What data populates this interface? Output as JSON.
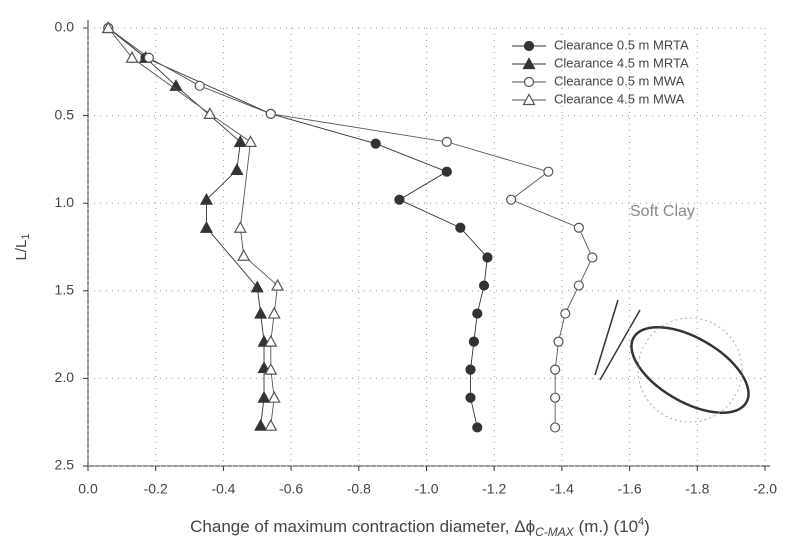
{
  "chart_data": {
    "type": "line",
    "x_label": "Change of maximum contraction diameter, Δϕ",
    "x_label_sub": "C-MAX",
    "x_label_mid": " (m.) (10",
    "x_label_sup": "4",
    "x_label_end": ")",
    "y_label": "L/L",
    "y_label_sub": "1",
    "annotation": "Soft Clay",
    "xlim": [
      0,
      -2.0
    ],
    "xticks": [
      {
        "value": 0,
        "label": "0.0"
      },
      -0.2,
      -0.4,
      -0.6,
      -0.8,
      {
        "value": -1.0,
        "label": "-1.0"
      },
      -1.2,
      -1.4,
      -1.6,
      -1.8,
      {
        "value": -2.0,
        "label": "-2.0"
      }
    ],
    "ylim": [
      0,
      2.5
    ],
    "y_inverted": true,
    "yticks": [
      {
        "value": 0,
        "label": "0.0"
      },
      0.5,
      {
        "value": 1.0,
        "label": "1.0"
      },
      1.5,
      {
        "value": 2.0,
        "label": "2.0"
      },
      2.5
    ],
    "grid": true,
    "legend": "upper right",
    "series": [
      {
        "name": "Clearance 0.5 m  MRTA",
        "color": "#333333",
        "marker": "circle-filled",
        "x": [
          -0.06,
          -0.17,
          -0.54,
          -0.85,
          -1.06,
          -0.92,
          -1.1,
          -1.18,
          -1.17,
          -1.15,
          -1.14,
          -1.13,
          -1.13,
          -1.15
        ],
        "values": [
          0.0,
          0.17,
          0.49,
          0.66,
          0.82,
          0.98,
          1.14,
          1.31,
          1.47,
          1.63,
          1.79,
          1.95,
          2.11,
          2.28
        ]
      },
      {
        "name": "Clearance 4.5 m  MRTA",
        "color": "#333333",
        "marker": "triangle-filled",
        "x": [
          -0.06,
          -0.17,
          -0.26,
          -0.45,
          -0.44,
          -0.35,
          -0.35,
          -0.5,
          -0.51,
          -0.52,
          -0.52,
          -0.52,
          -0.51
        ],
        "values": [
          0.0,
          0.17,
          0.33,
          0.65,
          0.81,
          0.98,
          1.14,
          1.48,
          1.63,
          1.79,
          1.94,
          2.11,
          2.27
        ]
      },
      {
        "name": "Clearance 0.5 m  MWA",
        "color": "#555555",
        "marker": "circle-open",
        "x": [
          -0.06,
          -0.18,
          -0.33,
          -0.54,
          -1.06,
          -1.36,
          -1.25,
          -1.45,
          -1.49,
          -1.45,
          -1.41,
          -1.39,
          -1.38,
          -1.38,
          -1.38
        ],
        "values": [
          0.0,
          0.17,
          0.33,
          0.49,
          0.65,
          0.82,
          0.98,
          1.14,
          1.31,
          1.47,
          1.63,
          1.79,
          1.95,
          2.11,
          2.28
        ]
      },
      {
        "name": "Clearance 4.5 m  MWA",
        "color": "#555555",
        "marker": "triangle-open",
        "x": [
          -0.06,
          -0.13,
          -0.36,
          -0.48,
          -0.45,
          -0.46,
          -0.56,
          -0.55,
          -0.54,
          -0.54,
          -0.55,
          -0.54
        ],
        "values": [
          0.0,
          0.17,
          0.49,
          0.65,
          1.14,
          1.3,
          1.47,
          1.63,
          1.79,
          1.95,
          2.11,
          2.27
        ]
      }
    ]
  }
}
